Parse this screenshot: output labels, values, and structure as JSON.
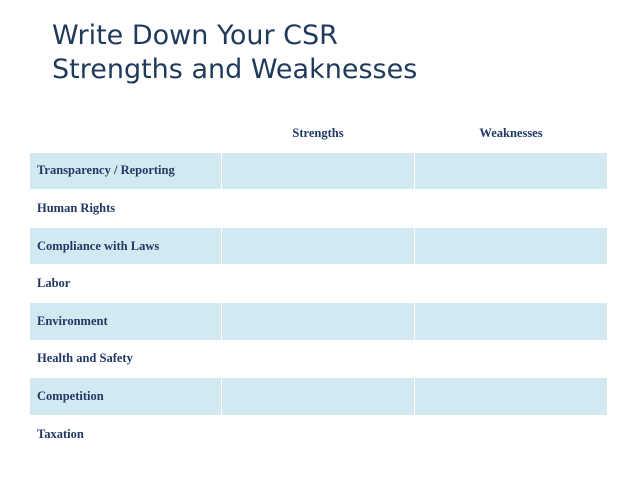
{
  "header": {
    "title": [
      "Write Down Your CSR",
      "Strengths and Weaknesses"
    ]
  },
  "table": {
    "columns": [
      "Strengths",
      "Weaknesses"
    ],
    "rows": [
      "Transparency / Reporting",
      "Human Rights",
      "Compliance with Laws",
      "Labor",
      "Environment",
      "Health and Safety",
      "Competition",
      "Taxation"
    ]
  }
}
